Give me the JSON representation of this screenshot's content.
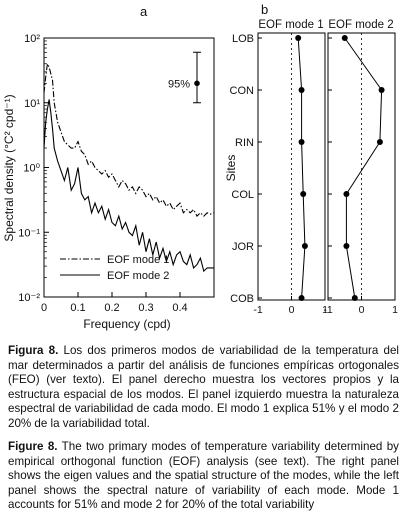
{
  "panel_a": {
    "label": "a",
    "ylabel": "Spectral density (°C² cpd⁻¹)",
    "xlabel": "Frequency (cpd)",
    "ci_label": "95%",
    "legend": [
      "EOF mode 1",
      "EOF mode 2"
    ]
  },
  "panel_b": {
    "label": "b",
    "ylabel": "Sites",
    "titles": [
      "EOF mode 1",
      "EOF mode 2"
    ]
  },
  "captions": {
    "es_label": "Figura 8.",
    "es_text": " Los dos primeros modos de variabilidad de la temperatura del mar determinados a partir del análisis de funciones empíricas ortogonales (FEO) (ver texto). El panel derecho muestra los vectores propios y la estructura espacial de los modos. El panel izquierdo muestra la naturaleza espectral de variabilidad de cada modo. El modo 1 explica 51% y el modo 2 20% de la variabilidad total.",
    "en_label": "Figure 8.",
    "en_text": " The two primary modes of temperature variability determined by empirical orthogonal function (EOF) analysis (see text). The right panel shows the eigen values and the spatial structure of the modes, while the left panel shows the spectral nature of variability of each mode. Mode 1 accounts for 51% and mode 2 for 20% of the total variability"
  },
  "chart_data": [
    {
      "type": "line",
      "xlim": [
        0,
        0.5
      ],
      "ylim_exp": [
        -2,
        2
      ],
      "log_y": true,
      "x_ticks": [
        "0",
        "0.1",
        "0.2",
        "0.3",
        "0.4"
      ],
      "x_tick_values": [
        0,
        0.1,
        0.2,
        0.3,
        0.4
      ],
      "y_ticks": [
        "10²",
        "10¹",
        "10⁰",
        "10⁻¹",
        "10⁻²"
      ],
      "y_tick_exps": [
        2,
        1,
        0,
        -1,
        -2
      ],
      "confidence_interval": {
        "label": "95%",
        "x": 0.45,
        "y_center_exp": 1.3,
        "y_low_exp": 1.0,
        "y_high_exp": 1.78
      },
      "series": [
        {
          "name": "EOF mode 1",
          "style": "dashdot",
          "x": [
            0.0,
            0.005,
            0.01,
            0.015,
            0.02,
            0.025,
            0.03,
            0.04,
            0.05,
            0.06,
            0.07,
            0.08,
            0.09,
            0.1,
            0.11,
            0.12,
            0.13,
            0.14,
            0.15,
            0.16,
            0.17,
            0.18,
            0.19,
            0.2,
            0.21,
            0.22,
            0.23,
            0.24,
            0.25,
            0.26,
            0.27,
            0.28,
            0.29,
            0.3,
            0.31,
            0.32,
            0.33,
            0.34,
            0.35,
            0.36,
            0.37,
            0.38,
            0.39,
            0.4,
            0.41,
            0.42,
            0.43,
            0.44,
            0.45,
            0.46,
            0.47,
            0.48,
            0.49,
            0.5
          ],
          "y_exp": [
            1.15,
            1.4,
            1.6,
            1.55,
            1.45,
            1.35,
            1.0,
            0.7,
            0.55,
            0.4,
            0.35,
            0.3,
            0.3,
            0.4,
            0.25,
            0.2,
            0.05,
            0.1,
            0.0,
            -0.05,
            -0.1,
            -0.05,
            -0.15,
            -0.1,
            -0.2,
            -0.3,
            -0.2,
            -0.25,
            -0.35,
            -0.3,
            -0.4,
            -0.3,
            -0.35,
            -0.45,
            -0.4,
            -0.5,
            -0.45,
            -0.55,
            -0.5,
            -0.6,
            -0.55,
            -0.65,
            -0.6,
            -0.55,
            -0.7,
            -0.65,
            -0.7,
            -0.65,
            -0.75,
            -0.7,
            -0.75,
            -0.7,
            -0.72,
            -0.7
          ]
        },
        {
          "name": "EOF mode 2",
          "style": "solid",
          "x": [
            0.0,
            0.005,
            0.01,
            0.015,
            0.02,
            0.025,
            0.03,
            0.04,
            0.05,
            0.06,
            0.07,
            0.08,
            0.09,
            0.1,
            0.11,
            0.12,
            0.13,
            0.14,
            0.15,
            0.16,
            0.17,
            0.18,
            0.19,
            0.2,
            0.21,
            0.22,
            0.23,
            0.24,
            0.25,
            0.26,
            0.27,
            0.28,
            0.29,
            0.3,
            0.31,
            0.32,
            0.33,
            0.34,
            0.35,
            0.36,
            0.37,
            0.38,
            0.39,
            0.4,
            0.41,
            0.42,
            0.43,
            0.44,
            0.45,
            0.46,
            0.47,
            0.48,
            0.49,
            0.5
          ],
          "y_exp": [
            0.3,
            0.7,
            0.9,
            1.05,
            0.85,
            0.6,
            0.3,
            0.1,
            -0.05,
            -0.2,
            0.0,
            -0.35,
            -0.25,
            0.0,
            -0.4,
            -0.5,
            -0.45,
            -0.7,
            -0.55,
            -0.7,
            -0.6,
            -0.8,
            -0.65,
            -0.85,
            -0.9,
            -0.75,
            -0.95,
            -0.85,
            -1.0,
            -1.05,
            -0.9,
            -1.2,
            -1.0,
            -1.3,
            -1.1,
            -1.35,
            -1.15,
            -1.4,
            -1.25,
            -1.45,
            -1.3,
            -1.5,
            -1.35,
            -1.3,
            -1.45,
            -1.5,
            -1.35,
            -1.55,
            -1.5,
            -1.4,
            -1.6,
            -1.55,
            -1.55,
            -1.55
          ]
        }
      ]
    },
    {
      "type": "line",
      "orientation": "vertical-profile",
      "sites": [
        "LOB",
        "CON",
        "RIN",
        "COL",
        "JOR",
        "COB"
      ],
      "x_ticks": [
        "-1",
        "0",
        "1"
      ],
      "xlim": [
        -1,
        1
      ],
      "series": [
        {
          "name": "EOF mode 1",
          "values": [
            0.2,
            0.3,
            0.3,
            0.35,
            0.4,
            0.3
          ]
        },
        {
          "name": "EOF mode 2",
          "values": [
            -0.5,
            0.6,
            0.55,
            -0.45,
            -0.45,
            -0.2
          ]
        }
      ]
    }
  ]
}
